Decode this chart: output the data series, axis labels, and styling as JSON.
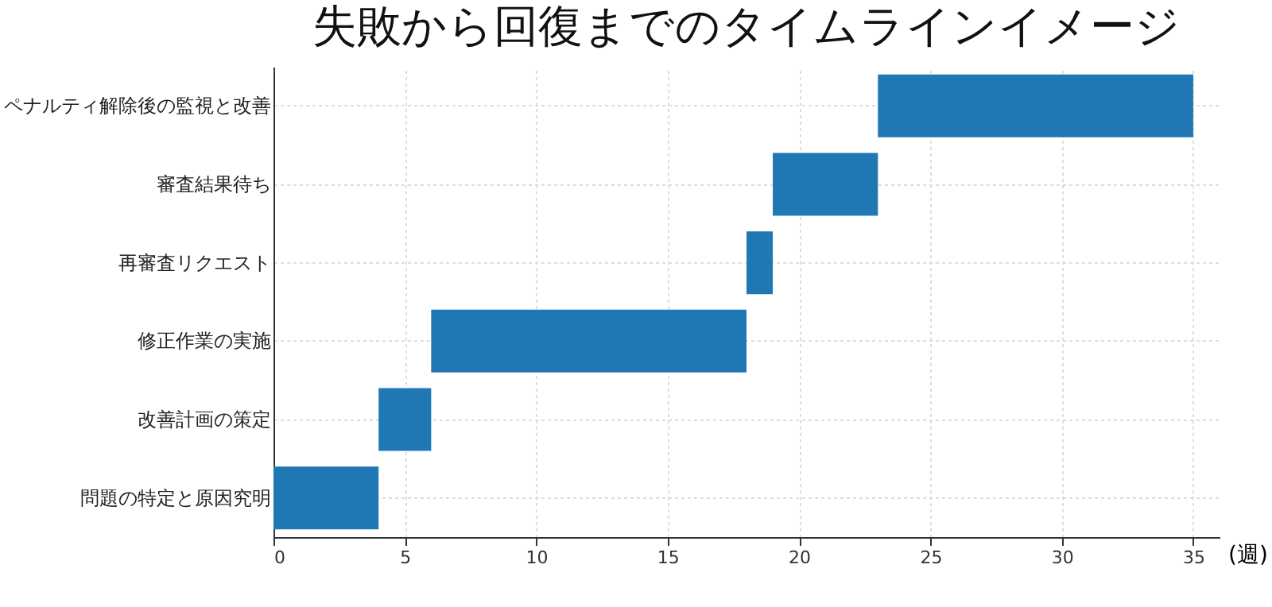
{
  "chart_data": {
    "type": "bar",
    "orientation": "horizontal",
    "title": "失敗から回復までのタイムラインイメージ",
    "xlabel": "(週)",
    "categories": [
      "ペナルティ解除後の監視と改善",
      "審査結果待ち",
      "再審査リクエスト",
      "修正作業の実施",
      "改善計画の策定",
      "問題の特定と原因究明"
    ],
    "base": [
      23,
      19,
      18,
      6,
      4,
      0
    ],
    "values": [
      12,
      4,
      1,
      12,
      2,
      4
    ],
    "color": "#1f77b4",
    "xlim": [
      0,
      36
    ],
    "xticks": [
      0,
      5,
      10,
      15,
      20,
      25,
      30,
      35
    ],
    "grid": true
  }
}
